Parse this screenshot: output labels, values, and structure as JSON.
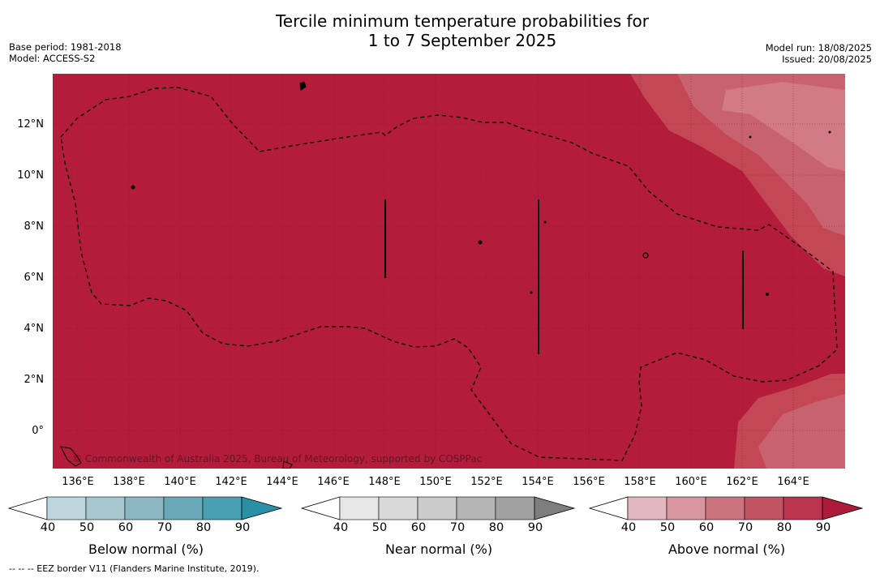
{
  "title_line1": "Tercile minimum temperature probabilities for",
  "title_line2": "1 to 7 September 2025",
  "meta_left": {
    "base_period": "Base period: 1981-2018",
    "model": "Model: ACCESS-S2"
  },
  "meta_right": {
    "model_run": "Model run: 18/08/2025",
    "issued": "Issued: 20/08/2025"
  },
  "map": {
    "lon_range": [
      135,
      166
    ],
    "lat_range": [
      -1.5,
      14
    ],
    "lat_labels": [
      {
        "lat": 12,
        "label": "12°N"
      },
      {
        "lat": 10,
        "label": "10°N"
      },
      {
        "lat": 8,
        "label": "8°N"
      },
      {
        "lat": 6,
        "label": "6°N"
      },
      {
        "lat": 4,
        "label": "4°N"
      },
      {
        "lat": 2,
        "label": "2°N"
      },
      {
        "lat": 0,
        "label": "0°"
      }
    ],
    "lon_labels": [
      {
        "lon": 136,
        "label": "136°E"
      },
      {
        "lon": 138,
        "label": "138°E"
      },
      {
        "lon": 140,
        "label": "140°E"
      },
      {
        "lon": 142,
        "label": "142°E"
      },
      {
        "lon": 144,
        "label": "144°E"
      },
      {
        "lon": 146,
        "label": "146°E"
      },
      {
        "lon": 148,
        "label": "148°E"
      },
      {
        "lon": 150,
        "label": "150°E"
      },
      {
        "lon": 152,
        "label": "152°E"
      },
      {
        "lon": 154,
        "label": "154°E"
      },
      {
        "lon": 156,
        "label": "156°E"
      },
      {
        "lon": 158,
        "label": "158°E"
      },
      {
        "lon": 160,
        "label": "160°E"
      },
      {
        "lon": 162,
        "label": "162°E"
      },
      {
        "lon": 164,
        "label": "164°E"
      }
    ],
    "base_color": "#b31c3b",
    "copyright": "© Commonwealth of Australia 2025, Bureau of Meteorology, supported by COSPPac"
  },
  "colorbars": [
    {
      "title": "Below normal (%)",
      "ticks": [
        "40",
        "50",
        "60",
        "70",
        "80",
        "90"
      ],
      "colors": [
        "#bdd5dc",
        "#a6c7ce",
        "#8ab7c2",
        "#6aaab8",
        "#48a0b2",
        "#2a90a5"
      ]
    },
    {
      "title": "Near normal (%)",
      "ticks": [
        "40",
        "50",
        "60",
        "70",
        "80",
        "90"
      ],
      "colors": [
        "#e6e6e6",
        "#d9d9d9",
        "#cbcbcb",
        "#b5b5b5",
        "#a1a1a1",
        "#7e7e7e"
      ]
    },
    {
      "title": "Above normal (%)",
      "ticks": [
        "40",
        "50",
        "60",
        "70",
        "80",
        "90"
      ],
      "colors": [
        "#e2b7bf",
        "#d7969f",
        "#cc7380",
        "#c15463",
        "#b9344c",
        "#ad1a3a"
      ]
    }
  ],
  "footer": "--  --  -- EEZ border V11 (Flanders Marine Institute, 2019)."
}
